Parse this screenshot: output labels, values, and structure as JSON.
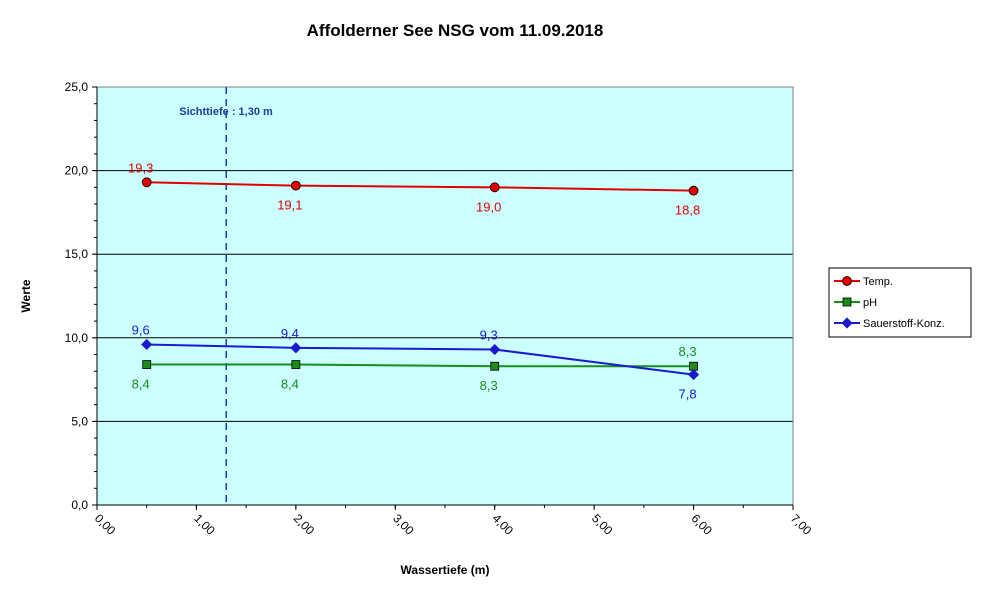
{
  "chart_data": {
    "type": "line",
    "title": "Affolderner See NSG vom 11.09.2018",
    "xlabel": "Wassertiefe (m)",
    "ylabel": "Werte",
    "xlim": [
      0,
      7
    ],
    "ylim": [
      0,
      25
    ],
    "x_ticks": [
      "0,00",
      "1,00",
      "2,00",
      "3,00",
      "4,00",
      "5,00",
      "6,00",
      "7,00"
    ],
    "y_ticks": [
      "0,0",
      "5,0",
      "10,0",
      "15,0",
      "20,0",
      "25,0"
    ],
    "grid": "horizontal",
    "plot_background": "#ccffff",
    "legend_position": "right",
    "annotation": {
      "text": "Sichttiefe : 1,30 m",
      "x": 1.3,
      "color": "#1f3b9c"
    },
    "series": [
      {
        "name": "Temp.",
        "color": "#e00000",
        "marker": "circle",
        "x": [
          0.5,
          2,
          4,
          6
        ],
        "values": [
          19.3,
          19.1,
          19.0,
          18.8
        ],
        "labels": [
          "19,3",
          "19,1",
          "19,0",
          "18,8"
        ],
        "label_pos": [
          "above",
          "below",
          "below",
          "below"
        ]
      },
      {
        "name": "pH",
        "color": "#1a8c1a",
        "marker": "square",
        "x": [
          0.5,
          2,
          4,
          6
        ],
        "values": [
          8.4,
          8.4,
          8.3,
          8.3
        ],
        "labels": [
          "8,4",
          "8,4",
          "8,3",
          "8,3"
        ],
        "label_pos": [
          "below",
          "below",
          "below",
          "above"
        ]
      },
      {
        "name": "Sauerstoff-Konz.",
        "color": "#1a1acc",
        "marker": "diamond",
        "x": [
          0.5,
          2,
          4,
          6
        ],
        "values": [
          9.6,
          9.4,
          9.3,
          7.8
        ],
        "labels": [
          "9,6",
          "9,4",
          "9,3",
          "7,8"
        ],
        "label_pos": [
          "above",
          "above",
          "above",
          "below"
        ]
      }
    ]
  }
}
